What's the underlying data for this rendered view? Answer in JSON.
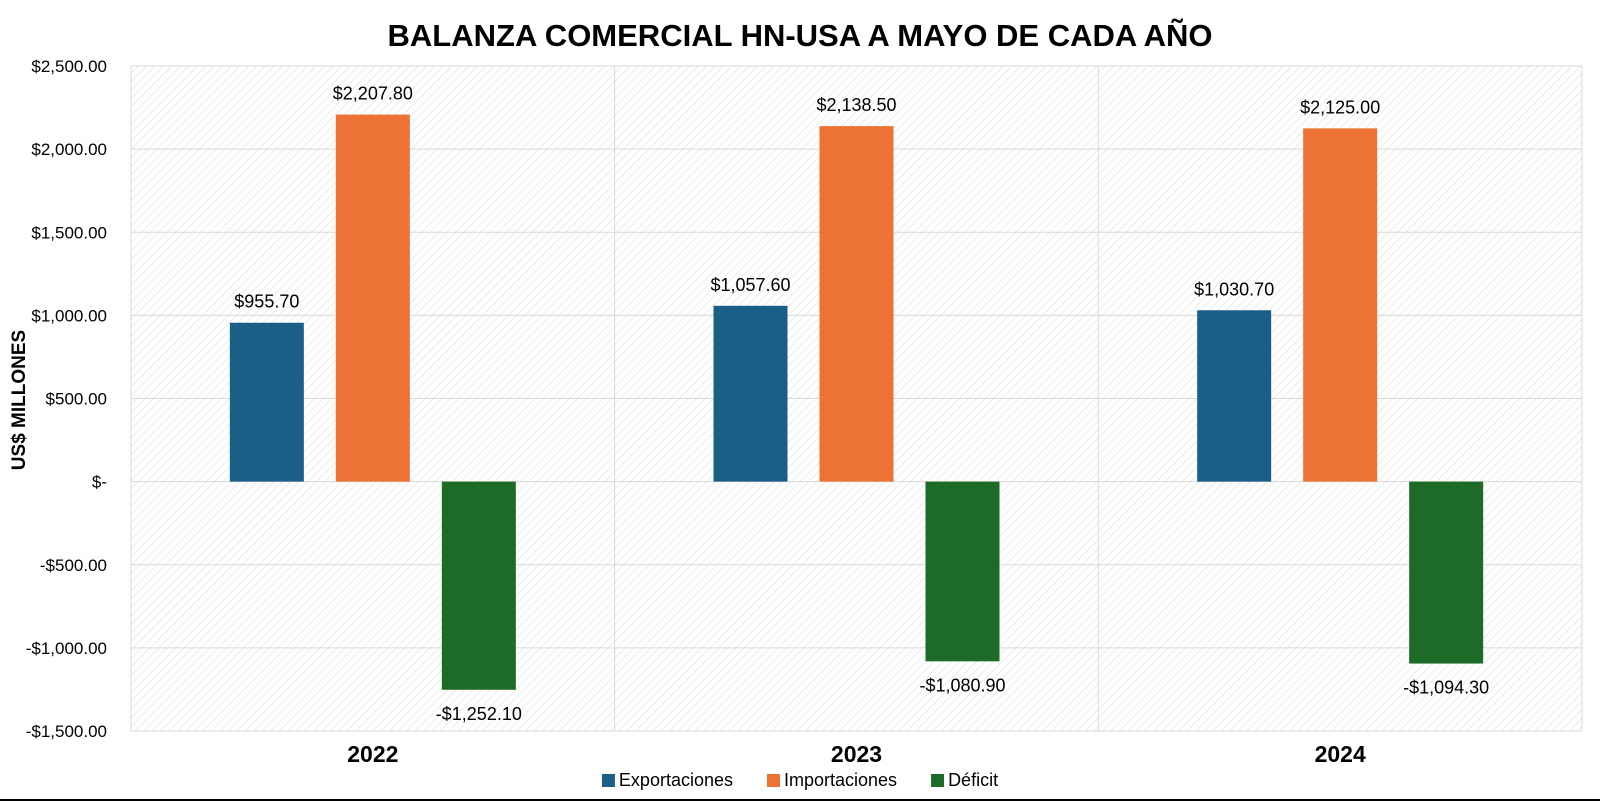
{
  "chart_data": {
    "type": "bar",
    "title": "BALANZA COMERCIAL HN-USA A MAYO DE CADA AÑO",
    "ylabel": "US$ MILLONES",
    "xlabel": "",
    "categories": [
      "2022",
      "2023",
      "2024"
    ],
    "series": [
      {
        "name": "Exportaciones",
        "color": "#1a5f85",
        "values": [
          955.7,
          1057.6,
          1030.7
        ],
        "labels": [
          "$955.70",
          "$1,057.60",
          "$1,030.70"
        ]
      },
      {
        "name": "Importaciones",
        "color": "#ec7335",
        "values": [
          2207.8,
          2138.5,
          2125.0
        ],
        "labels": [
          "$2,207.80",
          "$2,138.50",
          "$2,125.00"
        ]
      },
      {
        "name": "Déficit",
        "color": "#1d6b27",
        "values": [
          -1252.1,
          -1080.9,
          -1094.3
        ],
        "labels": [
          "-$1,252.10",
          "-$1,080.90",
          "-$1,094.30"
        ]
      }
    ],
    "ylim": [
      -1500,
      2500
    ],
    "yticks": [
      {
        "value": 2500,
        "label": "$2,500.00"
      },
      {
        "value": 2000,
        "label": "$2,000.00"
      },
      {
        "value": 1500,
        "label": "$1,500.00"
      },
      {
        "value": 1000,
        "label": "$1,000.00"
      },
      {
        "value": 500,
        "label": "$500.00"
      },
      {
        "value": 0,
        "label": "$-"
      },
      {
        "value": -500,
        "label": "-$500.00"
      },
      {
        "value": -1000,
        "label": "-$1,000.00"
      },
      {
        "value": -1500,
        "label": "-$1,500.00"
      }
    ],
    "grid": true,
    "legend_position": "bottom"
  }
}
